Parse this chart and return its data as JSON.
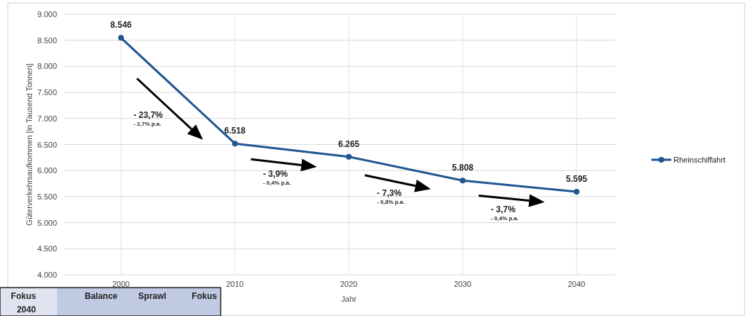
{
  "chart_data": {
    "type": "line",
    "xlabel": "Jahr",
    "ylabel": "Güterverkehrsaufkommen [in Tausend Tonnen]",
    "categories": [
      "2000",
      "2010",
      "2020",
      "2030",
      "2040"
    ],
    "series": [
      {
        "name": "Rheinschiffahrt",
        "color": "#1f5591",
        "values": [
          8546,
          6518,
          6265,
          5808,
          5595
        ],
        "value_labels": [
          "8.546",
          "6.518",
          "6.265",
          "5.808",
          "5.595"
        ]
      }
    ],
    "ylim": [
      4000,
      9000
    ],
    "yticks": [
      {
        "value": 4000,
        "label": "4.000"
      },
      {
        "value": 4500,
        "label": "4.500"
      },
      {
        "value": 5000,
        "label": "5.000"
      },
      {
        "value": 5500,
        "label": "5.500"
      },
      {
        "value": 6000,
        "label": "6.000"
      },
      {
        "value": 6500,
        "label": "6.500"
      },
      {
        "value": 7000,
        "label": "7.000"
      },
      {
        "value": 7500,
        "label": "7.500"
      },
      {
        "value": 8000,
        "label": "8.000"
      },
      {
        "value": 8500,
        "label": "8.500"
      },
      {
        "value": 9000,
        "label": "9.000"
      }
    ],
    "grid": true,
    "legend": "right",
    "marker": "circle",
    "line_style": "solid",
    "annotations": [
      "- 23,7%",
      "- 2,7% p.a.",
      "- 3,9%",
      "- 0,4% p.a.",
      "- 7,3%",
      "- 0,8% p.a.",
      "- 3,7%",
      "- 0,4% p.a.",
      "Fokus 2040",
      "Balance",
      "Sprawl",
      "Fokus"
    ]
  }
}
